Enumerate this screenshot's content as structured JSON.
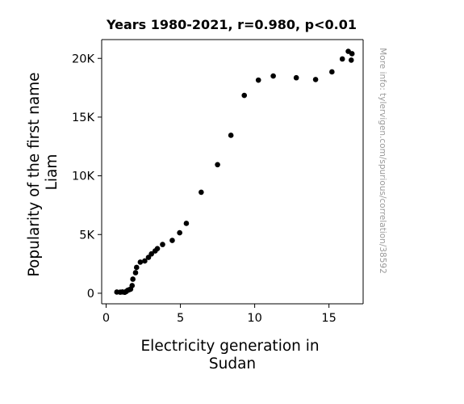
{
  "chart_data": {
    "type": "scatter",
    "title": "Years 1980-2021, r=0.980, p<0.01",
    "xlabel_lines": [
      "Electricity generation in",
      "Sudan"
    ],
    "ylabel_lines": [
      "Popularity of the first name",
      "Liam"
    ],
    "side_note": "More info: tylervigen.com/spurious/correlation/38592",
    "xlim": [
      -0.3,
      17.3
    ],
    "ylim": [
      -900,
      21600
    ],
    "x_ticks": [
      {
        "value": 0,
        "label": "0"
      },
      {
        "value": 5,
        "label": "5"
      },
      {
        "value": 10,
        "label": "10"
      },
      {
        "value": 15,
        "label": "15"
      }
    ],
    "y_ticks": [
      {
        "value": 0,
        "label": "0"
      },
      {
        "value": 5000,
        "label": "5K"
      },
      {
        "value": 10000,
        "label": "10K"
      },
      {
        "value": 15000,
        "label": "15K"
      },
      {
        "value": 20000,
        "label": "20K"
      }
    ],
    "grid": false,
    "marker_color": "#000000",
    "points": [
      {
        "x": 0.72,
        "y": 100
      },
      {
        "x": 0.95,
        "y": 90
      },
      {
        "x": 1.1,
        "y": 110
      },
      {
        "x": 1.25,
        "y": 80
      },
      {
        "x": 1.35,
        "y": 150
      },
      {
        "x": 1.45,
        "y": 250
      },
      {
        "x": 1.55,
        "y": 300
      },
      {
        "x": 1.65,
        "y": 350
      },
      {
        "x": 1.75,
        "y": 650
      },
      {
        "x": 1.8,
        "y": 1200
      },
      {
        "x": 1.98,
        "y": 1750
      },
      {
        "x": 2.05,
        "y": 2200
      },
      {
        "x": 2.3,
        "y": 2650
      },
      {
        "x": 2.6,
        "y": 2750
      },
      {
        "x": 2.85,
        "y": 3050
      },
      {
        "x": 3.05,
        "y": 3350
      },
      {
        "x": 3.3,
        "y": 3600
      },
      {
        "x": 3.45,
        "y": 3800
      },
      {
        "x": 3.8,
        "y": 4150
      },
      {
        "x": 4.45,
        "y": 4500
      },
      {
        "x": 4.95,
        "y": 5150
      },
      {
        "x": 5.4,
        "y": 5950
      },
      {
        "x": 6.4,
        "y": 8600
      },
      {
        "x": 7.5,
        "y": 10950
      },
      {
        "x": 8.4,
        "y": 13450
      },
      {
        "x": 9.3,
        "y": 16850
      },
      {
        "x": 10.25,
        "y": 18150
      },
      {
        "x": 11.25,
        "y": 18500
      },
      {
        "x": 12.8,
        "y": 18350
      },
      {
        "x": 14.1,
        "y": 18200
      },
      {
        "x": 15.2,
        "y": 18850
      },
      {
        "x": 15.9,
        "y": 19950
      },
      {
        "x": 16.3,
        "y": 20600
      },
      {
        "x": 16.5,
        "y": 19850
      },
      {
        "x": 16.55,
        "y": 20400
      }
    ]
  }
}
